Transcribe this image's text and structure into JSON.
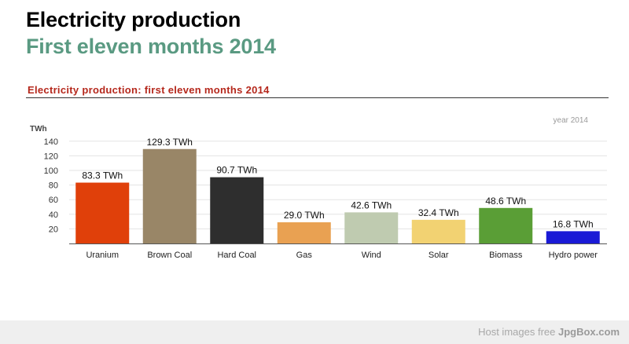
{
  "header": {
    "title": "Electricity production",
    "subtitle": "First eleven months 2014"
  },
  "chart_data": {
    "type": "bar",
    "title": "Electricity production: first eleven months 2014",
    "ylabel": "TWh",
    "series_label": "year 2014",
    "categories": [
      "Uranium",
      "Brown Coal",
      "Hard Coal",
      "Gas",
      "Wind",
      "Solar",
      "Biomass",
      "Hydro power"
    ],
    "values": [
      83.3,
      129.3,
      90.7,
      29.0,
      42.6,
      32.4,
      48.6,
      16.8
    ],
    "data_labels": [
      "83.3 TWh",
      "129.3 TWh",
      "90.7 TWh",
      "29.0 TWh",
      "42.6 TWh",
      "32.4 TWh",
      "48.6 TWh",
      "16.8 TWh"
    ],
    "colors": [
      "#e0400a",
      "#998667",
      "#2e2e2e",
      "#e9a152",
      "#bfcbb0",
      "#f2d272",
      "#5a9e36",
      "#1a1ad6"
    ],
    "yticks": [
      20,
      40,
      60,
      80,
      100,
      120,
      140
    ],
    "ylim": [
      0,
      150
    ],
    "grid": true
  },
  "footer": {
    "text": "Host images free",
    "brand": "JpgBox.com"
  }
}
